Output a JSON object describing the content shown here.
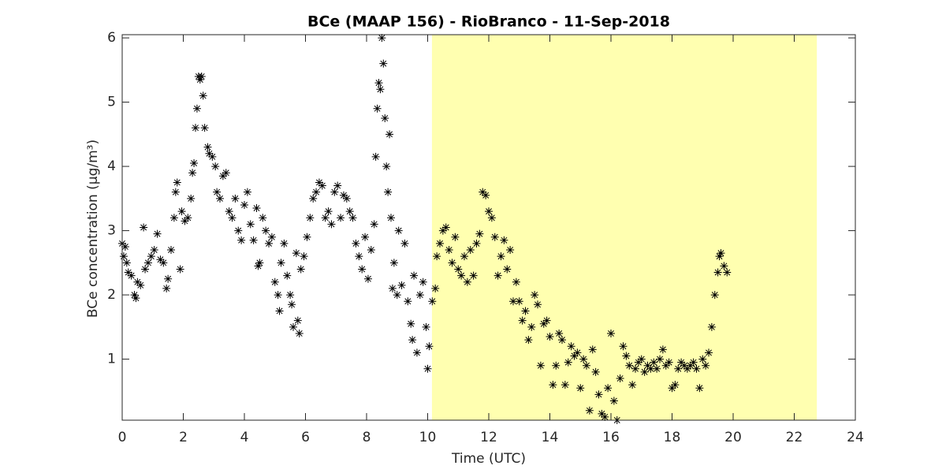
{
  "chart_data": {
    "type": "scatter",
    "title": "BCe (MAAP 156) - RioBranco - 11-Sep-2018",
    "xlabel": "Time (UTC)",
    "ylabel": "BCe concentration (μg/m³)",
    "xlim": [
      0,
      24
    ],
    "ylim": [
      0.05,
      6.05
    ],
    "xticks": [
      0,
      2,
      4,
      6,
      8,
      10,
      12,
      14,
      16,
      18,
      20,
      22,
      24
    ],
    "yticks": [
      1,
      2,
      3,
      4,
      5,
      6
    ],
    "shaded_region": [
      10.14,
      22.74
    ],
    "shaded_color": "#ffffb0",
    "color": "#000000",
    "marker": "asterisk",
    "x": [
      0.0,
      0.05,
      0.1,
      0.15,
      0.2,
      0.3,
      0.4,
      0.45,
      0.5,
      0.6,
      0.7,
      0.75,
      0.85,
      0.95,
      1.05,
      1.15,
      1.25,
      1.35,
      1.45,
      1.5,
      1.6,
      1.7,
      1.75,
      1.8,
      1.9,
      1.95,
      2.05,
      2.15,
      2.25,
      2.3,
      2.35,
      2.4,
      2.45,
      2.5,
      2.55,
      2.6,
      2.65,
      2.7,
      2.8,
      2.85,
      2.95,
      3.05,
      3.1,
      3.2,
      3.3,
      3.4,
      3.5,
      3.6,
      3.7,
      3.8,
      3.9,
      4.0,
      4.1,
      4.2,
      4.3,
      4.4,
      4.45,
      4.5,
      4.6,
      4.7,
      4.8,
      4.9,
      5.0,
      5.1,
      5.15,
      5.2,
      5.3,
      5.4,
      5.5,
      5.55,
      5.6,
      5.7,
      5.75,
      5.8,
      5.85,
      5.95,
      6.05,
      6.15,
      6.25,
      6.35,
      6.45,
      6.55,
      6.65,
      6.75,
      6.85,
      6.95,
      7.05,
      7.15,
      7.25,
      7.35,
      7.45,
      7.55,
      7.65,
      7.75,
      7.85,
      7.95,
      8.05,
      8.15,
      8.25,
      8.3,
      8.35,
      8.4,
      8.45,
      8.5,
      8.55,
      8.6,
      8.65,
      8.7,
      8.75,
      8.8,
      8.85,
      8.9,
      9.0,
      9.05,
      9.15,
      9.25,
      9.35,
      9.45,
      9.5,
      9.55,
      9.65,
      9.75,
      9.85,
      9.95,
      10.0,
      10.05,
      10.15,
      10.25,
      10.3,
      10.4,
      10.5,
      10.6,
      10.7,
      10.8,
      10.9,
      11.0,
      11.1,
      11.2,
      11.3,
      11.4,
      11.5,
      11.6,
      11.7,
      11.8,
      11.9,
      12.0,
      12.1,
      12.2,
      12.3,
      12.4,
      12.5,
      12.6,
      12.7,
      12.8,
      12.9,
      13.0,
      13.1,
      13.2,
      13.3,
      13.4,
      13.5,
      13.6,
      13.7,
      13.8,
      13.9,
      14.0,
      14.1,
      14.2,
      14.3,
      14.4,
      14.5,
      14.6,
      14.7,
      14.8,
      14.9,
      15.0,
      15.1,
      15.2,
      15.3,
      15.4,
      15.5,
      15.6,
      15.7,
      15.8,
      15.9,
      16.0,
      16.1,
      16.2,
      16.3,
      16.4,
      16.5,
      16.6,
      16.7,
      16.8,
      16.9,
      17.0,
      17.1,
      17.2,
      17.3,
      17.4,
      17.5,
      17.6,
      17.7,
      17.8,
      17.9,
      18.0,
      18.1,
      18.2,
      18.3,
      18.4,
      18.5,
      18.6,
      18.7,
      18.8,
      18.9,
      19.0,
      19.1,
      19.2,
      19.3,
      19.4,
      19.5,
      19.55,
      19.6,
      19.7,
      19.8
    ],
    "values": [
      2.8,
      2.6,
      2.75,
      2.5,
      2.35,
      2.3,
      2.0,
      1.95,
      2.2,
      2.15,
      3.05,
      2.4,
      2.5,
      2.6,
      2.7,
      2.95,
      2.55,
      2.5,
      2.1,
      2.25,
      2.7,
      3.2,
      3.6,
      3.75,
      2.4,
      3.3,
      3.15,
      3.2,
      3.5,
      3.9,
      4.05,
      4.6,
      4.9,
      5.4,
      5.35,
      5.4,
      5.1,
      4.6,
      4.3,
      4.2,
      4.15,
      4.0,
      3.6,
      3.5,
      3.85,
      3.9,
      3.3,
      3.2,
      3.5,
      3.0,
      2.85,
      3.4,
      3.6,
      3.1,
      2.85,
      3.35,
      2.45,
      2.5,
      3.2,
      3.0,
      2.8,
      2.9,
      2.2,
      2.0,
      1.75,
      2.5,
      2.8,
      2.3,
      2.0,
      1.85,
      1.5,
      2.65,
      1.6,
      1.4,
      2.4,
      2.6,
      2.9,
      3.2,
      3.5,
      3.6,
      3.75,
      3.7,
      3.2,
      3.3,
      3.1,
      3.6,
      3.7,
      3.2,
      3.55,
      3.5,
      3.3,
      3.2,
      2.8,
      2.6,
      2.4,
      2.9,
      2.25,
      2.7,
      3.1,
      4.15,
      4.9,
      5.3,
      5.2,
      6.0,
      5.6,
      4.75,
      4.0,
      3.6,
      4.5,
      3.2,
      2.1,
      2.5,
      2.0,
      3.0,
      2.15,
      2.8,
      1.9,
      1.55,
      1.3,
      2.3,
      1.1,
      2.0,
      2.2,
      1.5,
      0.85,
      1.2,
      1.9,
      2.1,
      2.6,
      2.8,
      3.0,
      3.05,
      2.7,
      2.5,
      2.9,
      2.4,
      2.3,
      2.6,
      2.2,
      2.7,
      2.3,
      2.8,
      2.95,
      3.6,
      3.55,
      3.3,
      3.2,
      2.9,
      2.3,
      2.6,
      2.85,
      2.4,
      2.7,
      1.9,
      2.2,
      1.9,
      1.6,
      1.75,
      1.3,
      1.5,
      2.0,
      1.85,
      0.9,
      1.55,
      1.6,
      1.35,
      0.6,
      0.9,
      1.4,
      1.3,
      0.6,
      0.95,
      1.2,
      1.05,
      1.1,
      0.55,
      1.0,
      0.9,
      0.2,
      1.15,
      0.8,
      0.45,
      0.15,
      0.1,
      0.55,
      1.4,
      0.35,
      0.05,
      0.7,
      1.2,
      1.05,
      0.9,
      0.6,
      0.85,
      0.95,
      1.0,
      0.8,
      0.9,
      0.85,
      0.95,
      0.85,
      1.0,
      1.15,
      0.9,
      0.95,
      0.55,
      0.6,
      0.85,
      0.95,
      0.9,
      0.85,
      0.9,
      0.95,
      0.85,
      0.55,
      1.0,
      0.9,
      1.1,
      1.5,
      2.0,
      2.35,
      2.6,
      2.65,
      2.45,
      2.35
    ]
  }
}
